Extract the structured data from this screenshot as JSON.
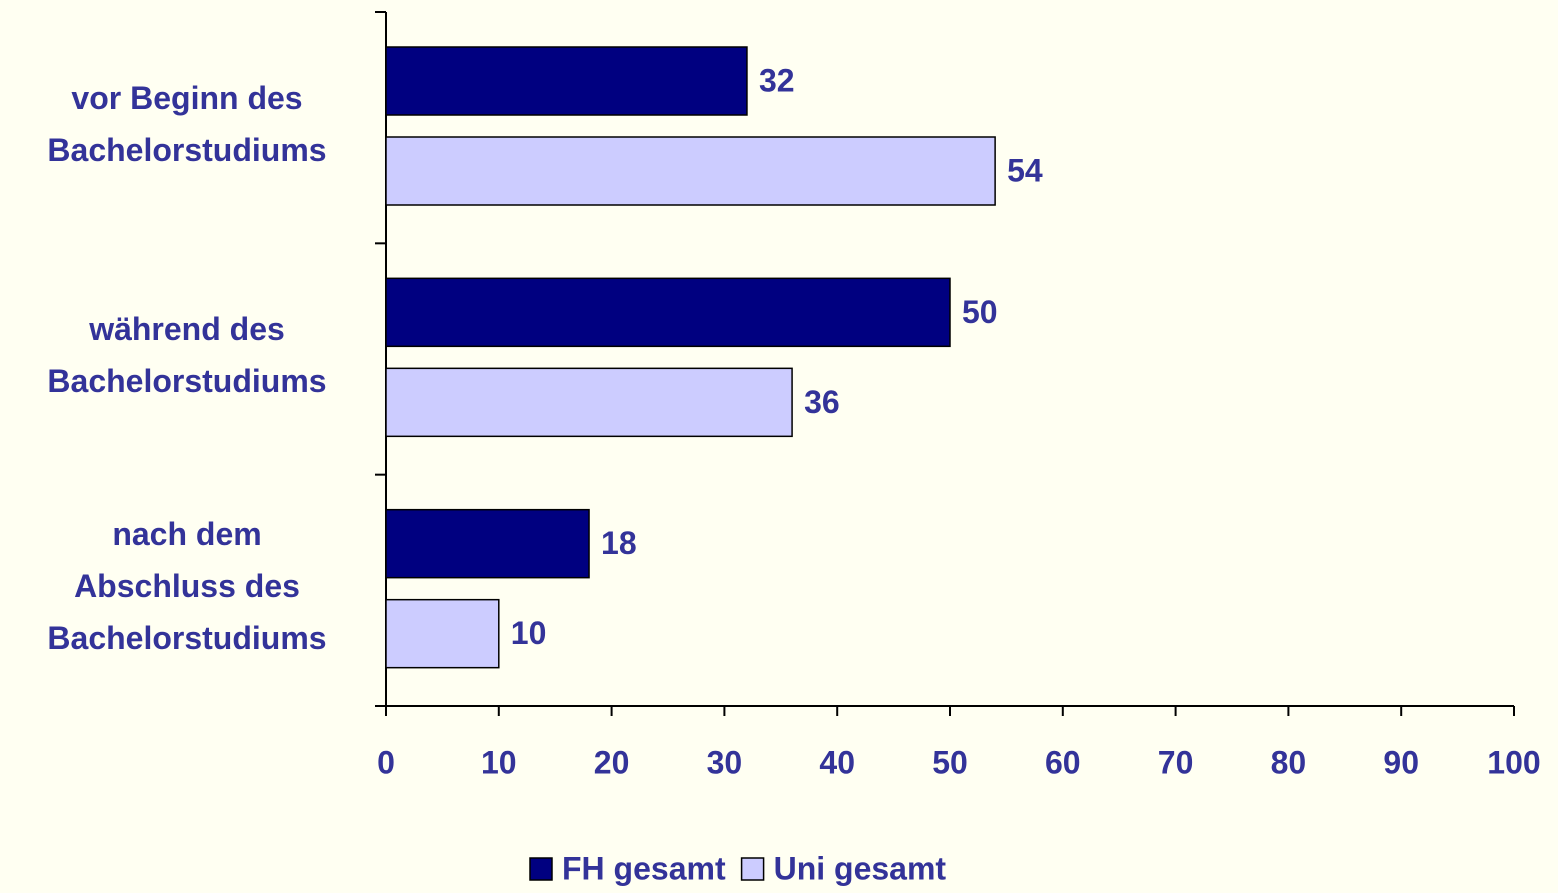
{
  "chart_data": {
    "type": "barh",
    "categories": [
      "vor Beginn des\nBachelorstudiums",
      "während des\nBachelorstudiums",
      "nach dem\nAbschluss des\nBachelorstudiums"
    ],
    "series": [
      {
        "name": "FH gesamt",
        "color": "#000080",
        "values": [
          32,
          50,
          18
        ]
      },
      {
        "name": "Uni gesamt",
        "color": "#ccccff",
        "values": [
          54,
          36,
          10
        ]
      }
    ],
    "xlim": [
      0,
      100
    ],
    "xticks": [
      0,
      10,
      20,
      30,
      40,
      50,
      60,
      70,
      80,
      90,
      100
    ],
    "legend": "bottom"
  }
}
